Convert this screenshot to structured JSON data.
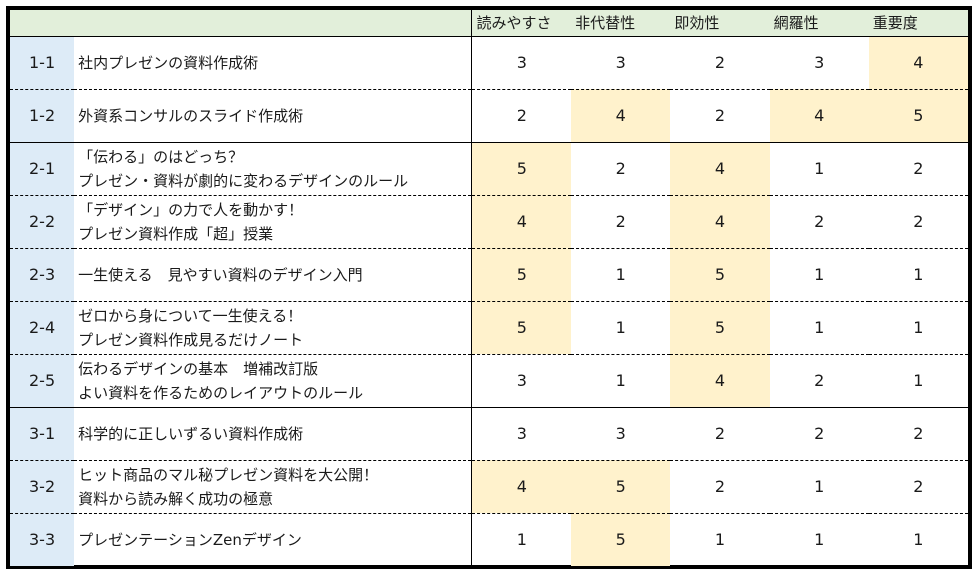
{
  "colors": {
    "header_bg": "#e2efda",
    "id_col_bg": "#ddebf7",
    "highlight_bg": "#fff2cc",
    "border": "#000000"
  },
  "table": {
    "columns": [
      "読みやすさ",
      "非代替性",
      "即効性",
      "網羅性",
      "重要度"
    ],
    "rows": [
      {
        "id": "1-1",
        "title": [
          "社内プレゼンの資料作成術"
        ],
        "scores": [
          3,
          3,
          2,
          3,
          4
        ],
        "highlight": [
          false,
          false,
          false,
          false,
          true
        ],
        "group_end": false
      },
      {
        "id": "1-2",
        "title": [
          "外資系コンサルのスライド作成術"
        ],
        "scores": [
          2,
          4,
          2,
          4,
          5
        ],
        "highlight": [
          false,
          true,
          false,
          true,
          true
        ],
        "group_end": true
      },
      {
        "id": "2-1",
        "title": [
          "「伝わる」のはどっち？",
          "プレゼン・資料が劇的に変わるデザインのルール"
        ],
        "scores": [
          5,
          2,
          4,
          1,
          2
        ],
        "highlight": [
          true,
          false,
          true,
          false,
          false
        ],
        "group_end": false
      },
      {
        "id": "2-2",
        "title": [
          "「デザイン」の力で人を動かす！",
          "プレゼン資料作成「超」授業"
        ],
        "scores": [
          4,
          2,
          4,
          2,
          2
        ],
        "highlight": [
          true,
          false,
          true,
          false,
          false
        ],
        "group_end": false
      },
      {
        "id": "2-3",
        "title": [
          "一生使える　見やすい資料のデザイン入門"
        ],
        "scores": [
          5,
          1,
          5,
          1,
          1
        ],
        "highlight": [
          true,
          false,
          true,
          false,
          false
        ],
        "group_end": false
      },
      {
        "id": "2-4",
        "title": [
          "ゼロから身について一生使える！",
          "プレゼン資料作成見るだけノート"
        ],
        "scores": [
          5,
          1,
          5,
          1,
          1
        ],
        "highlight": [
          true,
          false,
          true,
          false,
          false
        ],
        "group_end": false
      },
      {
        "id": "2-5",
        "title": [
          "伝わるデザインの基本　増補改訂版",
          "よい資料を作るためのレイアウトのルール"
        ],
        "scores": [
          3,
          1,
          4,
          2,
          1
        ],
        "highlight": [
          false,
          false,
          true,
          false,
          false
        ],
        "group_end": true
      },
      {
        "id": "3-1",
        "title": [
          "科学的に正しいずるい資料作成術"
        ],
        "scores": [
          3,
          3,
          2,
          2,
          2
        ],
        "highlight": [
          false,
          false,
          false,
          false,
          false
        ],
        "group_end": false
      },
      {
        "id": "3-2",
        "title": [
          "ヒット商品のマル秘プレゼン資料を大公開！",
          "資料から読み解く成功の極意"
        ],
        "scores": [
          4,
          5,
          2,
          1,
          2
        ],
        "highlight": [
          true,
          true,
          false,
          false,
          false
        ],
        "group_end": false
      },
      {
        "id": "3-3",
        "title": [
          "プレゼンテーションZenデザイン"
        ],
        "scores": [
          1,
          5,
          1,
          1,
          1
        ],
        "highlight": [
          false,
          true,
          false,
          false,
          false
        ],
        "group_end": false
      }
    ]
  }
}
